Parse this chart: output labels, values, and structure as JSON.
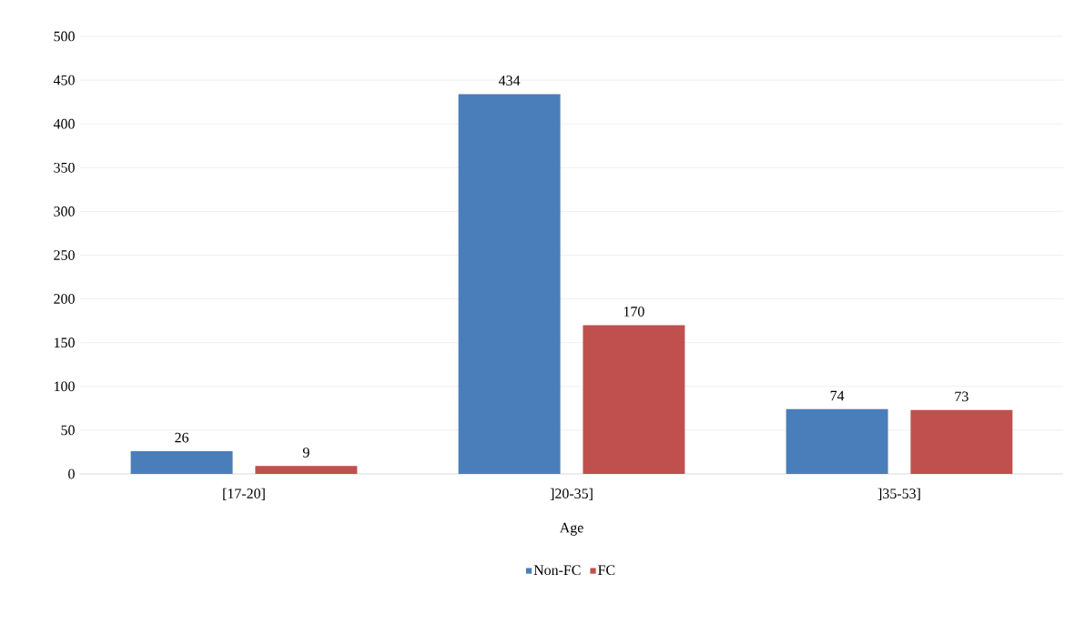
{
  "chart_data": {
    "type": "bar",
    "xlabel": "Age",
    "categories": [
      "[17-20]",
      "]20-35]",
      "]35-53]"
    ],
    "series": [
      {
        "name": "Non-FC",
        "color": "#4a7ebb",
        "values": [
          26,
          434,
          74
        ]
      },
      {
        "name": "FC",
        "color": "#c0504d",
        "values": [
          9,
          170,
          73
        ]
      }
    ],
    "ylim": [
      0,
      500
    ],
    "yticks": [
      0,
      50,
      100,
      150,
      200,
      250,
      300,
      350,
      400,
      450,
      500
    ],
    "grid": "y",
    "legend": "bottom",
    "data_labels": true
  }
}
